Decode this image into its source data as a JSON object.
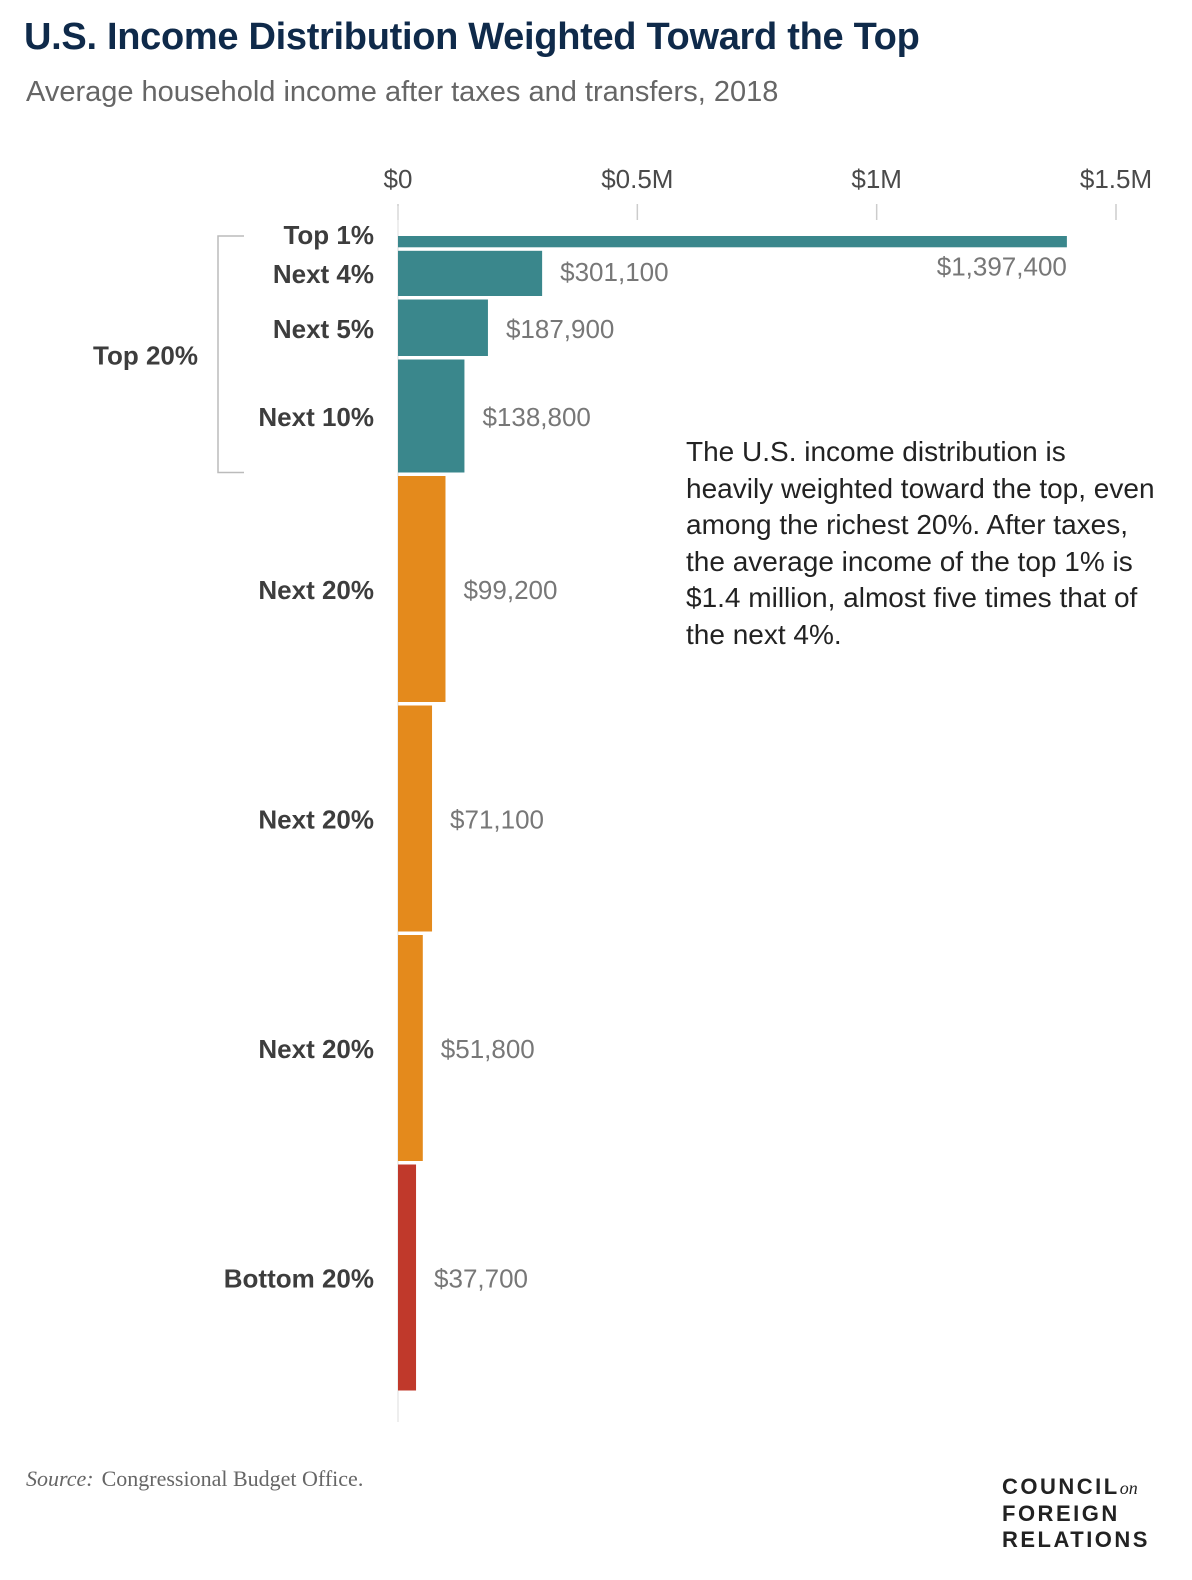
{
  "chart_data": {
    "type": "bar",
    "orientation": "horizontal",
    "title": "U.S. Income Distribution Weighted Toward the Top",
    "subtitle": "Average household income after taxes and transfers, 2018",
    "x_ticks": [
      {
        "value": 0,
        "label": "$0"
      },
      {
        "value": 500000,
        "label": "$0.5M"
      },
      {
        "value": 1000000,
        "label": "$1M"
      },
      {
        "value": 1500000,
        "label": "$1.5M"
      }
    ],
    "xlim": [
      0,
      1500000
    ],
    "grid": false,
    "bars": [
      {
        "category": "Top 1%",
        "value": 1397400,
        "value_label": "$1,397,400",
        "group": "top20",
        "population_share": 1
      },
      {
        "category": "Next 4%",
        "value": 301100,
        "value_label": "$301,100",
        "group": "top20",
        "population_share": 4
      },
      {
        "category": "Next 5%",
        "value": 187900,
        "value_label": "$187,900",
        "group": "top20",
        "population_share": 5
      },
      {
        "category": "Next 10%",
        "value": 138800,
        "value_label": "$138,800",
        "group": "top20",
        "population_share": 10
      },
      {
        "category": "Next 20%",
        "value": 99200,
        "value_label": "$99,200",
        "group": "middle",
        "population_share": 20
      },
      {
        "category": "Next 20%",
        "value": 71100,
        "value_label": "$71,100",
        "group": "middle",
        "population_share": 20
      },
      {
        "category": "Next 20%",
        "value": 51800,
        "value_label": "$51,800",
        "group": "middle",
        "population_share": 20
      },
      {
        "category": "Bottom 20%",
        "value": 37700,
        "value_label": "$37,700",
        "group": "bottom",
        "population_share": 20
      }
    ],
    "bracket_label": "Top 20%",
    "colors": {
      "top20": "#3a878c",
      "middle": "#e48a1c",
      "bottom": "#c0392b"
    }
  },
  "annotation": "The U.S. income distribution is heavily weighted toward the top, even among the richest 20%. After taxes, the average income of the top 1% is $1.4 million, almost five times that of the next 4%.",
  "source": {
    "label": "Source:",
    "text": "Congressional Budget Office."
  },
  "logo": {
    "line1": "COUNCIL",
    "on": "on",
    "line2": "FOREIGN",
    "line3": "RELATIONS"
  }
}
